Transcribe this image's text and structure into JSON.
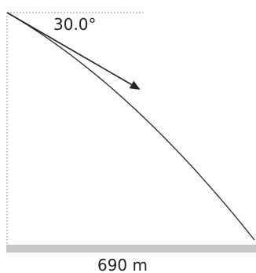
{
  "diagram": {
    "angle_label": "30.0°",
    "distance_label": "690 m",
    "launch_angle_deg": 30.0,
    "horizontal_distance_m": 690,
    "colors": {
      "trajectory": "#333333",
      "arrow": "#222222",
      "guide": "#8a8a8a",
      "ground": "#c8c8c8",
      "text": "#222222"
    }
  }
}
